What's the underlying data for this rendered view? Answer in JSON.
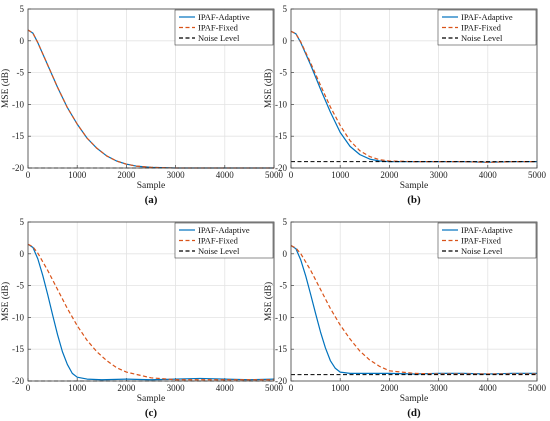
{
  "colors": {
    "adaptive": "#0072BD",
    "fixed": "#D95319",
    "noise": "#000000",
    "grid": "#e3e3e3",
    "axis": "#404040"
  },
  "chart_data": [
    {
      "type": "line",
      "panel_label": "(a)",
      "xlabel": "Sample",
      "ylabel": "MSE (dB)",
      "xlim": [
        0,
        5000
      ],
      "ylim": [
        -20,
        5
      ],
      "xticks": [
        "0",
        "1000",
        "2000",
        "3000",
        "4000",
        "5000"
      ],
      "yticks": [
        "5",
        "0",
        "-5",
        "-10",
        "-15",
        "-20"
      ],
      "grid": true,
      "legend_position": "top-right",
      "series": [
        {
          "name": "IPAF-Adaptive",
          "style": "solid",
          "color": "adaptive",
          "x": [
            0,
            100,
            200,
            400,
            600,
            800,
            1000,
            1200,
            1400,
            1600,
            1800,
            2000,
            2200,
            2500,
            3000,
            3500,
            4000,
            4500,
            5000
          ],
          "y": [
            1.7,
            1.2,
            -0.3,
            -3.8,
            -7.3,
            -10.5,
            -13.1,
            -15.3,
            -16.9,
            -18.1,
            -18.9,
            -19.4,
            -19.7,
            -19.9,
            -20.0,
            -20.0,
            -20.0,
            -20.0,
            -20.0
          ]
        },
        {
          "name": "IPAF-Fixed",
          "style": "dashed",
          "color": "fixed",
          "x": [
            0,
            100,
            200,
            400,
            600,
            800,
            1000,
            1200,
            1400,
            1600,
            1800,
            2000,
            2200,
            2500,
            3000,
            3500,
            4000,
            4500,
            5000
          ],
          "y": [
            1.7,
            1.2,
            -0.3,
            -3.8,
            -7.3,
            -10.5,
            -13.1,
            -15.3,
            -16.9,
            -18.1,
            -18.9,
            -19.4,
            -19.7,
            -19.9,
            -20.0,
            -20.0,
            -20.0,
            -20.0,
            -20.0
          ]
        },
        {
          "name": "Noise Level",
          "style": "dashed",
          "color": "noise",
          "x": [
            0,
            5000
          ],
          "y": [
            -20,
            -20
          ]
        }
      ]
    },
    {
      "type": "line",
      "panel_label": "(b)",
      "xlabel": "Sample",
      "ylabel": "MSE (dB)",
      "xlim": [
        0,
        5000
      ],
      "ylim": [
        -20,
        5
      ],
      "xticks": [
        "0",
        "1000",
        "2000",
        "3000",
        "4000",
        "5000"
      ],
      "yticks": [
        "5",
        "0",
        "-5",
        "-10",
        "-15",
        "-20"
      ],
      "grid": true,
      "legend_position": "top-right",
      "series": [
        {
          "name": "IPAF-Adaptive",
          "style": "solid",
          "color": "adaptive",
          "x": [
            0,
            100,
            200,
            400,
            600,
            800,
            1000,
            1200,
            1400,
            1600,
            1800,
            2000,
            2500,
            3000,
            3500,
            4000,
            4500,
            5000
          ],
          "y": [
            1.5,
            1.1,
            -0.3,
            -3.8,
            -7.6,
            -11.2,
            -14.4,
            -16.6,
            -17.9,
            -18.6,
            -18.9,
            -19.0,
            -19.0,
            -19.0,
            -19.0,
            -19.1,
            -19.0,
            -19.0
          ]
        },
        {
          "name": "IPAF-Fixed",
          "style": "dashed",
          "color": "fixed",
          "x": [
            0,
            100,
            200,
            400,
            600,
            800,
            1000,
            1200,
            1400,
            1600,
            1800,
            2000,
            2500,
            3000,
            3500,
            4000,
            4500,
            5000
          ],
          "y": [
            1.5,
            1.1,
            -0.2,
            -3.5,
            -7.0,
            -10.4,
            -13.3,
            -15.7,
            -17.3,
            -18.2,
            -18.7,
            -18.9,
            -19.0,
            -19.0,
            -19.0,
            -19.1,
            -19.0,
            -19.0
          ]
        },
        {
          "name": "Noise Level",
          "style": "dashed",
          "color": "noise",
          "x": [
            0,
            5000
          ],
          "y": [
            -19,
            -19
          ]
        }
      ]
    },
    {
      "type": "line",
      "panel_label": "(c)",
      "xlabel": "Sample",
      "ylabel": "MSE (dB)",
      "xlim": [
        0,
        5000
      ],
      "ylim": [
        -20,
        5
      ],
      "xticks": [
        "0",
        "1000",
        "2000",
        "3000",
        "4000",
        "5000"
      ],
      "yticks": [
        "5",
        "0",
        "-5",
        "-10",
        "-15",
        "-20"
      ],
      "grid": true,
      "legend_position": "top-right",
      "series": [
        {
          "name": "IPAF-Adaptive",
          "style": "solid",
          "color": "adaptive",
          "x": [
            0,
            100,
            200,
            300,
            400,
            500,
            600,
            700,
            800,
            900,
            1000,
            1200,
            1500,
            2000,
            2500,
            3000,
            3500,
            4000,
            4500,
            5000
          ],
          "y": [
            1.5,
            1.0,
            -0.8,
            -3.4,
            -6.4,
            -9.6,
            -12.7,
            -15.4,
            -17.4,
            -18.8,
            -19.4,
            -19.7,
            -19.8,
            -19.7,
            -19.8,
            -19.7,
            -19.6,
            -19.7,
            -19.8,
            -19.7
          ]
        },
        {
          "name": "IPAF-Fixed",
          "style": "dashed",
          "color": "fixed",
          "x": [
            0,
            100,
            200,
            400,
            600,
            800,
            1000,
            1200,
            1400,
            1600,
            1800,
            2000,
            2500,
            3000,
            3500,
            4000,
            4500,
            5000
          ],
          "y": [
            1.5,
            1.1,
            0.1,
            -2.6,
            -5.6,
            -8.6,
            -11.3,
            -13.6,
            -15.4,
            -16.8,
            -17.9,
            -18.6,
            -19.5,
            -19.8,
            -19.8,
            -19.8,
            -19.8,
            -19.8
          ]
        },
        {
          "name": "Noise Level",
          "style": "dashed",
          "color": "noise",
          "x": [
            0,
            5000
          ],
          "y": [
            -20,
            -20
          ]
        }
      ]
    },
    {
      "type": "line",
      "panel_label": "(d)",
      "xlabel": "Sample",
      "ylabel": "MSE (dB)",
      "xlim": [
        0,
        5000
      ],
      "ylim": [
        -20,
        5
      ],
      "xticks": [
        "0",
        "1000",
        "2000",
        "3000",
        "4000",
        "5000"
      ],
      "yticks": [
        "5",
        "0",
        "-5",
        "-10",
        "-15",
        "-20"
      ],
      "grid": true,
      "legend_position": "top-right",
      "series": [
        {
          "name": "IPAF-Adaptive",
          "style": "solid",
          "color": "adaptive",
          "x": [
            0,
            100,
            200,
            300,
            400,
            500,
            600,
            700,
            800,
            900,
            1000,
            1200,
            1500,
            2000,
            2500,
            3000,
            3500,
            4000,
            4500,
            5000
          ],
          "y": [
            1.3,
            0.8,
            -1.0,
            -3.5,
            -6.4,
            -9.4,
            -12.3,
            -14.8,
            -16.8,
            -18.0,
            -18.6,
            -18.8,
            -18.8,
            -18.8,
            -18.9,
            -18.8,
            -18.8,
            -18.9,
            -18.8,
            -18.8
          ]
        },
        {
          "name": "IPAF-Fixed",
          "style": "dashed",
          "color": "fixed",
          "x": [
            0,
            100,
            200,
            400,
            600,
            800,
            1000,
            1200,
            1400,
            1600,
            1800,
            2000,
            2500,
            3000,
            3500,
            4000,
            4500,
            5000
          ],
          "y": [
            1.3,
            0.9,
            0.0,
            -2.6,
            -5.6,
            -8.6,
            -11.2,
            -13.4,
            -15.3,
            -16.7,
            -17.7,
            -18.4,
            -18.8,
            -18.9,
            -18.9,
            -18.9,
            -18.9,
            -18.9
          ]
        },
        {
          "name": "Noise Level",
          "style": "dashed",
          "color": "noise",
          "x": [
            0,
            5000
          ],
          "y": [
            -19,
            -19
          ]
        }
      ]
    }
  ]
}
